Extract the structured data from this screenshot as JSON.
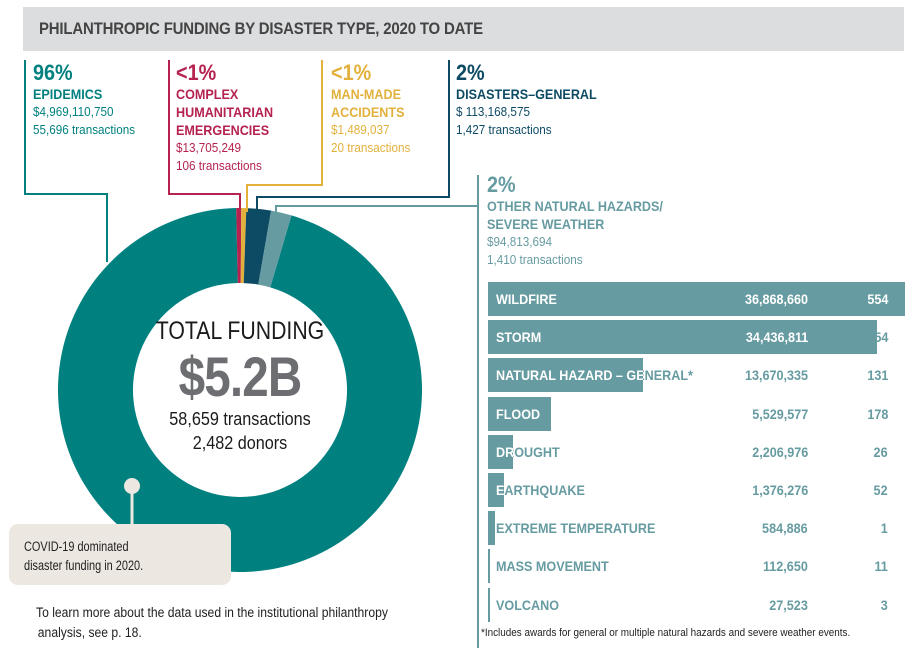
{
  "title": "PHILANTHROPIC FUNDING BY DISASTER TYPE, 2020 TO DATE",
  "colors": {
    "epidemics": "#00807f",
    "complex": "#b5224f",
    "manmade": "#e2b13c",
    "general": "#0d4a64",
    "natural": "#669ba1",
    "callout": "#ece8e1"
  },
  "categories": [
    {
      "key": "epidemics",
      "pct": "96%",
      "name": [
        "EPIDEMICS"
      ],
      "amount": "$4,969,110,750",
      "transactions": "55,696 transactions"
    },
    {
      "key": "complex",
      "pct": "<1%",
      "name": [
        "COMPLEX",
        "HUMANITARIAN",
        "EMERGENCIES"
      ],
      "amount": "$13,705,249",
      "transactions": "106 transactions"
    },
    {
      "key": "manmade",
      "pct": "<1%",
      "name": [
        "MAN-MADE",
        "ACCIDENTS"
      ],
      "amount": "$1,489,037",
      "transactions": "20 transactions"
    },
    {
      "key": "general",
      "pct": "2%",
      "name": [
        "DISASTERS–GENERAL"
      ],
      "amount": "$ 113,168,575",
      "transactions": "1,427 transactions"
    },
    {
      "key": "natural",
      "pct": "2%",
      "name": [
        "OTHER NATURAL HAZARDS/",
        "SEVERE WEATHER"
      ],
      "amount": "$94,813,694",
      "transactions": "1,410 transactions"
    }
  ],
  "center": {
    "label": "TOTAL FUNDING",
    "total": "$5.2B",
    "transactions": "58,659 transactions",
    "donors": "2,482 donors"
  },
  "callout": [
    "COVID-19 dominated",
    "disaster funding in 2020."
  ],
  "note": [
    "To learn more about the data used in the institutional philanthropy",
    "analysis, see p. 18."
  ],
  "footnote": "*Includes awards for general or multiple natural hazards and severe weather events.",
  "chart_data": [
    {
      "type": "pie",
      "title": "TOTAL FUNDING $5.2B",
      "labels": [
        "Epidemics",
        "Complex Humanitarian Emergencies",
        "Man-made Accidents",
        "Disasters–General",
        "Other Natural Hazards/Severe Weather"
      ],
      "values": [
        4969110750,
        13705249,
        1489037,
        113168575,
        94813694
      ],
      "transactions": [
        55696,
        106,
        20,
        1427,
        1410
      ],
      "donut": true
    },
    {
      "type": "bar",
      "orientation": "horizontal",
      "title": "Other natural hazards / severe weather breakdown",
      "categories": [
        "WILDFIRE",
        "STORM",
        "NATURAL HAZARD – GENERAL*",
        "FLOOD",
        "DROUGHT",
        "EARTHQUAKE",
        "EXTREME TEMPERATURE",
        "MASS MOVEMENT",
        "VOLCANO"
      ],
      "values": [
        36868660,
        34436811,
        13670335,
        5529577,
        2206976,
        1376276,
        584886,
        112650,
        27523
      ],
      "labels": [
        "36,868,660",
        "34,436,811",
        "13,670,335",
        "5,529,577",
        "2,206,976",
        "1,376,276",
        "584,886",
        "112,650",
        "27,523"
      ],
      "transactions": [
        "554",
        "454",
        "131",
        "178",
        "26",
        "52",
        "1",
        "11",
        "3"
      ]
    }
  ]
}
